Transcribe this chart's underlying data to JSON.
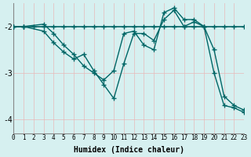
{
  "xlabel": "Humidex (Indice chaleur)",
  "ylabel": "",
  "bg_color": "#d6f0f0",
  "grid_color": "#b0d8d8",
  "line_color": "#006666",
  "xlim": [
    0,
    23
  ],
  "ylim": [
    -4.3,
    -1.5
  ],
  "yticks": [
    -4,
    -3,
    -2
  ],
  "xticks": [
    0,
    1,
    2,
    3,
    4,
    5,
    6,
    7,
    8,
    9,
    10,
    11,
    12,
    13,
    14,
    15,
    16,
    17,
    18,
    19,
    20,
    21,
    22,
    23
  ],
  "line1_x": [
    0,
    1,
    2,
    3,
    4,
    5,
    6,
    7,
    8,
    9,
    10,
    11,
    12,
    13,
    14,
    15,
    16,
    17,
    18,
    19,
    20,
    21,
    22,
    23
  ],
  "line1_y": [
    -2.0,
    -2.0,
    -2.0,
    -2.0,
    -2.0,
    -2.0,
    -2.0,
    -2.0,
    -2.0,
    -2.0,
    -2.0,
    -2.0,
    -2.0,
    -2.0,
    -2.0,
    -2.0,
    -2.0,
    -2.0,
    -2.0,
    -2.0,
    -2.0,
    -2.0,
    -2.0,
    -2.0
  ],
  "line2_x": [
    0,
    1,
    3,
    4,
    5,
    6,
    7,
    8,
    9,
    10,
    11,
    12,
    13,
    14,
    15,
    16,
    17,
    18,
    19,
    20,
    21,
    22,
    23
  ],
  "line2_y": [
    -2.0,
    -2.0,
    -1.95,
    -2.15,
    -2.4,
    -2.6,
    -2.85,
    -3.0,
    -3.15,
    -2.95,
    -2.15,
    -2.1,
    -2.4,
    -2.5,
    -1.7,
    -1.6,
    -1.85,
    -1.85,
    -2.0,
    -2.5,
    -3.5,
    -3.7,
    -3.8
  ],
  "line3_x": [
    0,
    1,
    3,
    4,
    5,
    6,
    7,
    8,
    9,
    10,
    11,
    12,
    13,
    14,
    15,
    16,
    17,
    18,
    19,
    20,
    21,
    22,
    23
  ],
  "line3_y": [
    -2.0,
    -2.0,
    -2.1,
    -2.35,
    -2.55,
    -2.7,
    -2.6,
    -2.95,
    -3.25,
    -3.55,
    -2.8,
    -2.15,
    -2.15,
    -2.3,
    -1.85,
    -1.65,
    -2.0,
    -1.9,
    -2.0,
    -3.0,
    -3.7,
    -3.75,
    -3.85
  ]
}
